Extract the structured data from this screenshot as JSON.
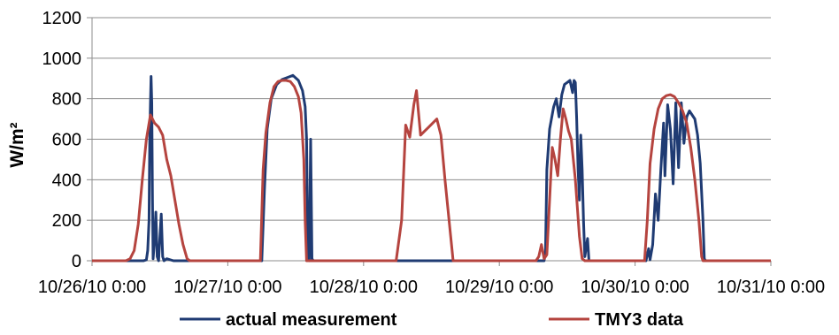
{
  "chart_data": {
    "type": "line",
    "ylabel": "W/m²",
    "ylim": [
      0,
      1200
    ],
    "yticks": [
      0,
      200,
      400,
      600,
      800,
      1000,
      1200
    ],
    "xlim": [
      0,
      5
    ],
    "xticks": [
      {
        "value": 0,
        "label": "10/26/10 0:00"
      },
      {
        "value": 1,
        "label": "10/27/10 0:00"
      },
      {
        "value": 2,
        "label": "10/28/10 0:00"
      },
      {
        "value": 3,
        "label": "10/29/10 0:00"
      },
      {
        "value": 4,
        "label": "10/30/10 0:00"
      },
      {
        "value": 5,
        "label": "10/31/10 0:00"
      }
    ],
    "grid": {
      "horizontal": true,
      "vertical": false
    },
    "legend_position": "bottom",
    "series": [
      {
        "name": "actual measurement",
        "color": "#1f3b73",
        "points": [
          [
            0,
            0
          ],
          [
            0.38,
            0
          ],
          [
            0.4,
            5
          ],
          [
            0.41,
            50
          ],
          [
            0.42,
            200
          ],
          [
            0.425,
            600
          ],
          [
            0.43,
            780
          ],
          [
            0.435,
            910
          ],
          [
            0.44,
            780
          ],
          [
            0.445,
            300
          ],
          [
            0.45,
            10
          ],
          [
            0.46,
            100
          ],
          [
            0.47,
            240
          ],
          [
            0.48,
            20
          ],
          [
            0.49,
            0
          ],
          [
            0.5,
            120
          ],
          [
            0.51,
            230
          ],
          [
            0.52,
            20
          ],
          [
            0.53,
            0
          ],
          [
            0.55,
            10
          ],
          [
            0.6,
            0
          ],
          [
            0.66,
            0
          ],
          [
            1,
            0
          ],
          [
            1.25,
            0
          ],
          [
            1.27,
            350
          ],
          [
            1.29,
            650
          ],
          [
            1.32,
            800
          ],
          [
            1.36,
            870
          ],
          [
            1.4,
            895
          ],
          [
            1.44,
            905
          ],
          [
            1.48,
            915
          ],
          [
            1.52,
            890
          ],
          [
            1.55,
            840
          ],
          [
            1.57,
            760
          ],
          [
            1.58,
            600
          ],
          [
            1.59,
            5
          ],
          [
            1.6,
            0
          ],
          [
            1.61,
            600
          ],
          [
            1.62,
            10
          ],
          [
            1.63,
            0
          ],
          [
            2,
            0
          ],
          [
            3,
            0
          ],
          [
            3.3,
            0
          ],
          [
            3.33,
            0
          ],
          [
            3.34,
            50
          ],
          [
            3.35,
            450
          ],
          [
            3.37,
            650
          ],
          [
            3.4,
            760
          ],
          [
            3.42,
            800
          ],
          [
            3.44,
            710
          ],
          [
            3.46,
            820
          ],
          [
            3.48,
            870
          ],
          [
            3.5,
            880
          ],
          [
            3.52,
            890
          ],
          [
            3.54,
            830
          ],
          [
            3.55,
            890
          ],
          [
            3.56,
            880
          ],
          [
            3.57,
            700
          ],
          [
            3.58,
            450
          ],
          [
            3.59,
            300
          ],
          [
            3.6,
            620
          ],
          [
            3.61,
            450
          ],
          [
            3.62,
            200
          ],
          [
            3.63,
            20
          ],
          [
            3.65,
            110
          ],
          [
            3.66,
            5
          ],
          [
            3.67,
            0
          ],
          [
            4,
            0
          ],
          [
            4.08,
            0
          ],
          [
            4.1,
            60
          ],
          [
            4.11,
            5
          ],
          [
            4.13,
            80
          ],
          [
            4.15,
            330
          ],
          [
            4.17,
            200
          ],
          [
            4.19,
            450
          ],
          [
            4.21,
            680
          ],
          [
            4.22,
            420
          ],
          [
            4.24,
            770
          ],
          [
            4.26,
            650
          ],
          [
            4.28,
            380
          ],
          [
            4.3,
            780
          ],
          [
            4.32,
            460
          ],
          [
            4.34,
            780
          ],
          [
            4.36,
            580
          ],
          [
            4.38,
            710
          ],
          [
            4.4,
            740
          ],
          [
            4.42,
            720
          ],
          [
            4.44,
            700
          ],
          [
            4.46,
            620
          ],
          [
            4.48,
            480
          ],
          [
            4.5,
            200
          ],
          [
            4.51,
            10
          ],
          [
            4.52,
            0
          ],
          [
            5,
            0
          ]
        ]
      },
      {
        "name": "TMY3 data",
        "color": "#b5443f",
        "points": [
          [
            0,
            0
          ],
          [
            0.25,
            0
          ],
          [
            0.28,
            10
          ],
          [
            0.31,
            50
          ],
          [
            0.34,
            180
          ],
          [
            0.37,
            400
          ],
          [
            0.4,
            600
          ],
          [
            0.43,
            720
          ],
          [
            0.46,
            680
          ],
          [
            0.49,
            660
          ],
          [
            0.52,
            620
          ],
          [
            0.55,
            500
          ],
          [
            0.58,
            420
          ],
          [
            0.61,
            300
          ],
          [
            0.64,
            180
          ],
          [
            0.67,
            80
          ],
          [
            0.7,
            10
          ],
          [
            0.72,
            0
          ],
          [
            1,
            0
          ],
          [
            1.24,
            0
          ],
          [
            1.26,
            450
          ],
          [
            1.28,
            630
          ],
          [
            1.31,
            780
          ],
          [
            1.34,
            860
          ],
          [
            1.37,
            885
          ],
          [
            1.4,
            890
          ],
          [
            1.43,
            890
          ],
          [
            1.46,
            885
          ],
          [
            1.49,
            860
          ],
          [
            1.52,
            810
          ],
          [
            1.54,
            730
          ],
          [
            1.56,
            500
          ],
          [
            1.57,
            200
          ],
          [
            1.58,
            0
          ],
          [
            2,
            0
          ],
          [
            2.24,
            0
          ],
          [
            2.26,
            100
          ],
          [
            2.28,
            200
          ],
          [
            2.31,
            670
          ],
          [
            2.34,
            610
          ],
          [
            2.37,
            770
          ],
          [
            2.39,
            840
          ],
          [
            2.42,
            620
          ],
          [
            2.45,
            640
          ],
          [
            2.48,
            660
          ],
          [
            2.51,
            680
          ],
          [
            2.54,
            700
          ],
          [
            2.57,
            620
          ],
          [
            2.6,
            400
          ],
          [
            2.63,
            200
          ],
          [
            2.66,
            0
          ],
          [
            3,
            0
          ],
          [
            3.27,
            0
          ],
          [
            3.29,
            20
          ],
          [
            3.31,
            80
          ],
          [
            3.33,
            10
          ],
          [
            3.35,
            30
          ],
          [
            3.37,
            300
          ],
          [
            3.39,
            560
          ],
          [
            3.41,
            500
          ],
          [
            3.43,
            420
          ],
          [
            3.45,
            600
          ],
          [
            3.47,
            750
          ],
          [
            3.49,
            700
          ],
          [
            3.51,
            640
          ],
          [
            3.53,
            600
          ],
          [
            3.56,
            400
          ],
          [
            3.59,
            120
          ],
          [
            3.61,
            10
          ],
          [
            3.63,
            0
          ],
          [
            4,
            0
          ],
          [
            4.07,
            0
          ],
          [
            4.09,
            200
          ],
          [
            4.11,
            480
          ],
          [
            4.14,
            650
          ],
          [
            4.17,
            750
          ],
          [
            4.2,
            800
          ],
          [
            4.23,
            815
          ],
          [
            4.26,
            820
          ],
          [
            4.29,
            810
          ],
          [
            4.32,
            780
          ],
          [
            4.35,
            740
          ],
          [
            4.38,
            680
          ],
          [
            4.41,
            560
          ],
          [
            4.44,
            400
          ],
          [
            4.47,
            200
          ],
          [
            4.49,
            20
          ],
          [
            4.5,
            0
          ],
          [
            5,
            0
          ]
        ]
      }
    ]
  }
}
